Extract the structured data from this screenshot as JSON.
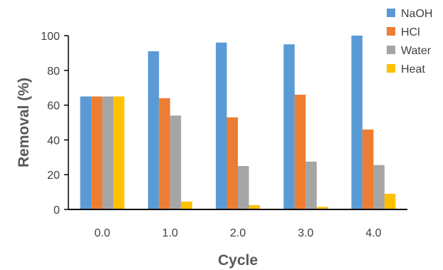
{
  "chart_data": {
    "type": "bar",
    "title": "",
    "xlabel": "Cycle",
    "ylabel": "Removal (%)",
    "categories": [
      "0.0",
      "1.0",
      "2.0",
      "3.0",
      "4.0"
    ],
    "ylim": [
      0,
      100
    ],
    "yticks": [
      "0",
      "20",
      "40",
      "60",
      "80",
      "100"
    ],
    "grid": false,
    "legend_position": "top-right",
    "series": [
      {
        "name": "NaOH",
        "color": "#5B9BD5",
        "values": [
          65,
          91,
          96,
          95,
          100
        ]
      },
      {
        "name": "HCl",
        "color": "#ED7D31",
        "values": [
          65,
          64,
          53,
          66,
          46
        ]
      },
      {
        "name": "Water",
        "color": "#A5A5A5",
        "values": [
          65,
          54,
          25,
          27.5,
          25.5
        ]
      },
      {
        "name": "Heat",
        "color": "#FFC000",
        "values": [
          65,
          4.5,
          2.5,
          1.5,
          9
        ]
      }
    ]
  }
}
